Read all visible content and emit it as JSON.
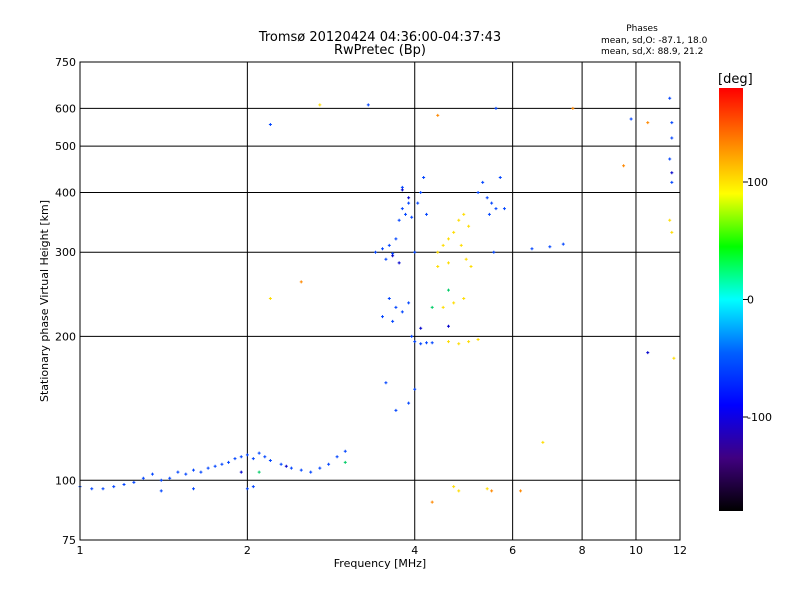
{
  "chart_data": {
    "type": "scatter",
    "title": "Tromsø 20120424 04:36:00-04:37:43",
    "subtitle": "RwPretec (Bp)",
    "xlabel": "Frequency [MHz]",
    "ylabel": "Stationary phase Virtual Height [km]",
    "x_scale": "log",
    "y_scale": "log",
    "xlim": [
      1,
      12
    ],
    "ylim": [
      75,
      750
    ],
    "x_ticks": [
      1,
      2,
      4,
      6,
      8,
      10,
      12
    ],
    "y_ticks": [
      75,
      100,
      200,
      300,
      400,
      500,
      600,
      750
    ],
    "grid": true,
    "phases_box": {
      "title": "Phases",
      "line1": "mean, sd,O: -87.1, 18.0",
      "line2": "mean, sd,X:  88.9, 21.2"
    },
    "colorbar": {
      "label": "[deg]",
      "min": -180,
      "max": 180,
      "ticks": [
        100,
        0,
        -100
      ],
      "colors": [
        "#ff0000",
        "#ff8000",
        "#ffff00",
        "#00ff00",
        "#00ffff",
        "#0060ff",
        "#0000ff",
        "#400080",
        "#000000"
      ]
    },
    "series": [
      {
        "phase": -100,
        "color": "#0044ff",
        "points": [
          [
            1.0,
            97
          ],
          [
            1.05,
            96
          ],
          [
            1.1,
            96
          ],
          [
            1.15,
            97
          ],
          [
            1.2,
            98
          ],
          [
            1.25,
            99
          ],
          [
            1.3,
            101
          ],
          [
            1.35,
            103
          ],
          [
            1.4,
            100
          ],
          [
            1.45,
            101
          ],
          [
            1.5,
            104
          ],
          [
            1.55,
            103
          ],
          [
            1.6,
            105
          ],
          [
            1.65,
            104
          ],
          [
            1.7,
            106
          ],
          [
            1.75,
            107
          ],
          [
            1.8,
            108
          ],
          [
            1.85,
            109
          ],
          [
            1.9,
            111
          ],
          [
            1.95,
            112
          ],
          [
            2.0,
            113
          ],
          [
            2.05,
            111
          ],
          [
            2.1,
            114
          ],
          [
            2.15,
            112
          ],
          [
            2.2,
            110
          ],
          [
            2.3,
            108
          ],
          [
            2.4,
            106
          ],
          [
            2.5,
            105
          ],
          [
            2.6,
            104
          ],
          [
            2.7,
            106
          ],
          [
            2.8,
            108
          ],
          [
            2.9,
            112
          ],
          [
            3.0,
            115
          ],
          [
            2.0,
            96
          ],
          [
            2.05,
            97
          ],
          [
            1.6,
            96
          ],
          [
            1.4,
            95
          ],
          [
            3.4,
            300
          ],
          [
            3.5,
            305
          ],
          [
            3.55,
            290
          ],
          [
            3.6,
            310
          ],
          [
            3.65,
            298
          ],
          [
            3.7,
            320
          ],
          [
            3.8,
            370
          ],
          [
            3.85,
            360
          ],
          [
            3.9,
            380
          ],
          [
            3.95,
            355
          ],
          [
            3.75,
            350
          ],
          [
            3.8,
            410
          ],
          [
            3.6,
            240
          ],
          [
            3.7,
            230
          ],
          [
            3.8,
            225
          ],
          [
            3.9,
            235
          ],
          [
            3.5,
            220
          ],
          [
            3.65,
            215
          ],
          [
            3.95,
            200
          ],
          [
            4.0,
            195
          ],
          [
            4.1,
            193
          ],
          [
            4.2,
            194
          ],
          [
            4.3,
            194
          ],
          [
            4.0,
            300
          ],
          [
            4.05,
            380
          ],
          [
            4.1,
            400
          ],
          [
            4.15,
            430
          ],
          [
            4.2,
            360
          ],
          [
            5.2,
            400
          ],
          [
            5.4,
            390
          ],
          [
            5.5,
            380
          ],
          [
            5.6,
            370
          ],
          [
            5.3,
            420
          ],
          [
            5.45,
            360
          ],
          [
            5.8,
            370
          ],
          [
            5.55,
            300
          ],
          [
            6.5,
            305
          ],
          [
            7.0,
            308
          ],
          [
            7.4,
            312
          ],
          [
            3.55,
            160
          ],
          [
            3.7,
            140
          ],
          [
            3.9,
            145
          ],
          [
            4.0,
            155
          ],
          [
            5.7,
            430
          ],
          [
            5.6,
            600
          ],
          [
            9.8,
            570
          ],
          [
            11.5,
            630
          ],
          [
            11.6,
            560
          ],
          [
            11.6,
            520
          ],
          [
            11.5,
            470
          ],
          [
            11.6,
            420
          ],
          [
            3.3,
            610
          ],
          [
            2.2,
            555
          ]
        ]
      },
      {
        "phase": 100,
        "color": "#ffdd00",
        "points": [
          [
            4.4,
            300
          ],
          [
            4.5,
            310
          ],
          [
            4.6,
            320
          ],
          [
            4.7,
            330
          ],
          [
            4.8,
            350
          ],
          [
            4.9,
            360
          ],
          [
            5.0,
            340
          ],
          [
            4.85,
            310
          ],
          [
            4.95,
            290
          ],
          [
            5.05,
            280
          ],
          [
            4.6,
            285
          ],
          [
            4.4,
            280
          ],
          [
            4.5,
            230
          ],
          [
            4.7,
            235
          ],
          [
            4.9,
            240
          ],
          [
            4.6,
            195
          ],
          [
            4.8,
            193
          ],
          [
            5.0,
            195
          ],
          [
            5.2,
            197
          ],
          [
            4.7,
            97
          ],
          [
            4.8,
            95
          ],
          [
            5.4,
            96
          ],
          [
            6.8,
            120
          ],
          [
            11.5,
            350
          ],
          [
            11.6,
            330
          ],
          [
            11.7,
            180
          ],
          [
            2.2,
            240
          ],
          [
            2.7,
            610
          ]
        ]
      },
      {
        "phase": 140,
        "color": "#ff8800",
        "points": [
          [
            4.3,
            90
          ],
          [
            5.5,
            95
          ],
          [
            7.7,
            600
          ],
          [
            9.5,
            455
          ],
          [
            10.5,
            560
          ],
          [
            2.5,
            260
          ],
          [
            4.4,
            580
          ],
          [
            6.2,
            95
          ]
        ]
      },
      {
        "phase": -130,
        "color": "#0000cc",
        "points": [
          [
            3.8,
            405
          ],
          [
            3.9,
            390
          ],
          [
            4.1,
            208
          ],
          [
            4.6,
            210
          ],
          [
            3.65,
            295
          ],
          [
            3.75,
            285
          ],
          [
            2.35,
            107
          ],
          [
            1.95,
            104
          ],
          [
            10.5,
            185
          ],
          [
            11.6,
            440
          ]
        ]
      },
      {
        "phase": 0,
        "color": "#00cc66",
        "points": [
          [
            4.3,
            230
          ],
          [
            4.6,
            250
          ],
          [
            2.1,
            104
          ],
          [
            3.0,
            109
          ]
        ]
      }
    ]
  }
}
